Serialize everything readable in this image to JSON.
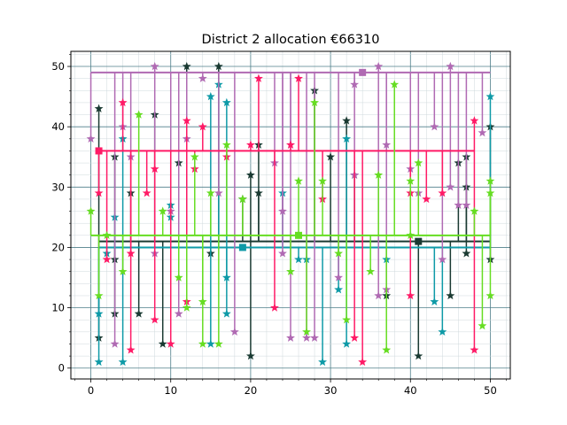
{
  "chart_data": {
    "type": "scatter",
    "title": "District 2 allocation €66310",
    "xlabel": "",
    "ylabel": "",
    "xlim": [
      -2.5,
      52.5
    ],
    "ylim": [
      -1.8,
      52.5
    ],
    "x_ticks": [
      "0",
      "10",
      "20",
      "30",
      "40",
      "50"
    ],
    "y_ticks": [
      "0",
      "10",
      "20",
      "30",
      "40",
      "50"
    ],
    "x_tick_values": [
      0,
      10,
      20,
      30,
      40,
      50
    ],
    "y_tick_values": [
      0,
      10,
      20,
      30,
      40,
      50
    ],
    "grid": true,
    "minor_grid": true,
    "marker": "star",
    "note": "stem segments connect each star to its series median line; squares mark the median center",
    "series": [
      {
        "color": "#1a3a32",
        "median": 21,
        "center_x": 41,
        "span": [
          1,
          50
        ],
        "points": [
          [
            1,
            43
          ],
          [
            1,
            5
          ],
          [
            3,
            35
          ],
          [
            3,
            18
          ],
          [
            3,
            9
          ],
          [
            5,
            29
          ],
          [
            6,
            9
          ],
          [
            8,
            42
          ],
          [
            9,
            4
          ],
          [
            11,
            34
          ],
          [
            12,
            50
          ],
          [
            15,
            19
          ],
          [
            16,
            50
          ],
          [
            20,
            32
          ],
          [
            20,
            2
          ],
          [
            21,
            37
          ],
          [
            21,
            29
          ],
          [
            19,
            28
          ],
          [
            28,
            46
          ],
          [
            30,
            35
          ],
          [
            32,
            41
          ],
          [
            33,
            32
          ],
          [
            37,
            12
          ],
          [
            41,
            2
          ],
          [
            45,
            12
          ],
          [
            46,
            34
          ],
          [
            47,
            35
          ],
          [
            47,
            30
          ],
          [
            47,
            19
          ],
          [
            50,
            40
          ],
          [
            50,
            18
          ]
        ]
      },
      {
        "color": "#0e9aa7",
        "median": 20,
        "center_x": 19,
        "span": [
          1,
          50
        ],
        "points": [
          [
            1,
            9
          ],
          [
            1,
            1
          ],
          [
            2,
            19
          ],
          [
            3,
            25
          ],
          [
            4,
            38
          ],
          [
            4,
            1
          ],
          [
            10,
            27
          ],
          [
            10,
            25
          ],
          [
            15,
            45
          ],
          [
            15,
            4
          ],
          [
            16,
            47
          ],
          [
            17,
            44
          ],
          [
            17,
            15
          ],
          [
            17,
            9
          ],
          [
            24,
            29
          ],
          [
            26,
            18
          ],
          [
            27,
            18
          ],
          [
            29,
            1
          ],
          [
            31,
            13
          ],
          [
            32,
            38
          ],
          [
            32,
            4
          ],
          [
            37,
            18
          ],
          [
            43,
            11
          ],
          [
            44,
            6
          ],
          [
            50,
            45
          ]
        ]
      },
      {
        "color": "#b06ab3",
        "median": 49,
        "center_x": 34,
        "span": [
          0,
          50
        ],
        "points": [
          [
            0,
            38
          ],
          [
            3,
            4
          ],
          [
            4,
            40
          ],
          [
            5,
            35
          ],
          [
            8,
            50
          ],
          [
            8,
            19
          ],
          [
            10,
            26
          ],
          [
            11,
            9
          ],
          [
            12,
            38
          ],
          [
            14,
            48
          ],
          [
            16,
            29
          ],
          [
            18,
            6
          ],
          [
            23,
            34
          ],
          [
            24,
            26
          ],
          [
            24,
            19
          ],
          [
            25,
            37
          ],
          [
            25,
            5
          ],
          [
            27,
            5
          ],
          [
            28,
            5
          ],
          [
            31,
            15
          ],
          [
            33,
            47
          ],
          [
            33,
            32
          ],
          [
            36,
            50
          ],
          [
            36,
            12
          ],
          [
            37,
            37
          ],
          [
            37,
            13
          ],
          [
            40,
            33
          ],
          [
            41,
            29
          ],
          [
            43,
            40
          ],
          [
            44,
            18
          ],
          [
            45,
            50
          ],
          [
            45,
            30
          ],
          [
            46,
            27
          ],
          [
            47,
            27
          ],
          [
            49,
            39
          ]
        ]
      },
      {
        "color": "#ff1a66",
        "median": 36,
        "center_x": 1,
        "span": [
          1,
          48
        ],
        "points": [
          [
            1,
            29
          ],
          [
            2,
            18
          ],
          [
            4,
            44
          ],
          [
            5,
            19
          ],
          [
            5,
            3
          ],
          [
            7,
            29
          ],
          [
            8,
            33
          ],
          [
            8,
            8
          ],
          [
            10,
            4
          ],
          [
            12,
            41
          ],
          [
            12,
            11
          ],
          [
            13,
            33
          ],
          [
            14,
            40
          ],
          [
            17,
            35
          ],
          [
            20,
            37
          ],
          [
            21,
            48
          ],
          [
            23,
            10
          ],
          [
            25,
            37
          ],
          [
            26,
            48
          ],
          [
            29,
            28
          ],
          [
            33,
            5
          ],
          [
            34,
            1
          ],
          [
            40,
            29
          ],
          [
            40,
            12
          ],
          [
            42,
            28
          ],
          [
            44,
            29
          ],
          [
            48,
            41
          ],
          [
            48,
            3
          ]
        ]
      },
      {
        "color": "#66dd22",
        "median": 22,
        "center_x": 26,
        "span": [
          0,
          50
        ],
        "points": [
          [
            0,
            26
          ],
          [
            1,
            12
          ],
          [
            2,
            22
          ],
          [
            4,
            16
          ],
          [
            6,
            42
          ],
          [
            9,
            26
          ],
          [
            11,
            15
          ],
          [
            12,
            10
          ],
          [
            13,
            35
          ],
          [
            14,
            11
          ],
          [
            14,
            4
          ],
          [
            15,
            29
          ],
          [
            16,
            4
          ],
          [
            17,
            37
          ],
          [
            19,
            28
          ],
          [
            25,
            16
          ],
          [
            26,
            31
          ],
          [
            27,
            6
          ],
          [
            28,
            44
          ],
          [
            29,
            31
          ],
          [
            31,
            19
          ],
          [
            32,
            8
          ],
          [
            35,
            16
          ],
          [
            36,
            32
          ],
          [
            37,
            3
          ],
          [
            38,
            47
          ],
          [
            40,
            31
          ],
          [
            40,
            22
          ],
          [
            41,
            34
          ],
          [
            48,
            26
          ],
          [
            49,
            7
          ],
          [
            50,
            31
          ],
          [
            50,
            29
          ],
          [
            50,
            12
          ]
        ]
      }
    ]
  }
}
